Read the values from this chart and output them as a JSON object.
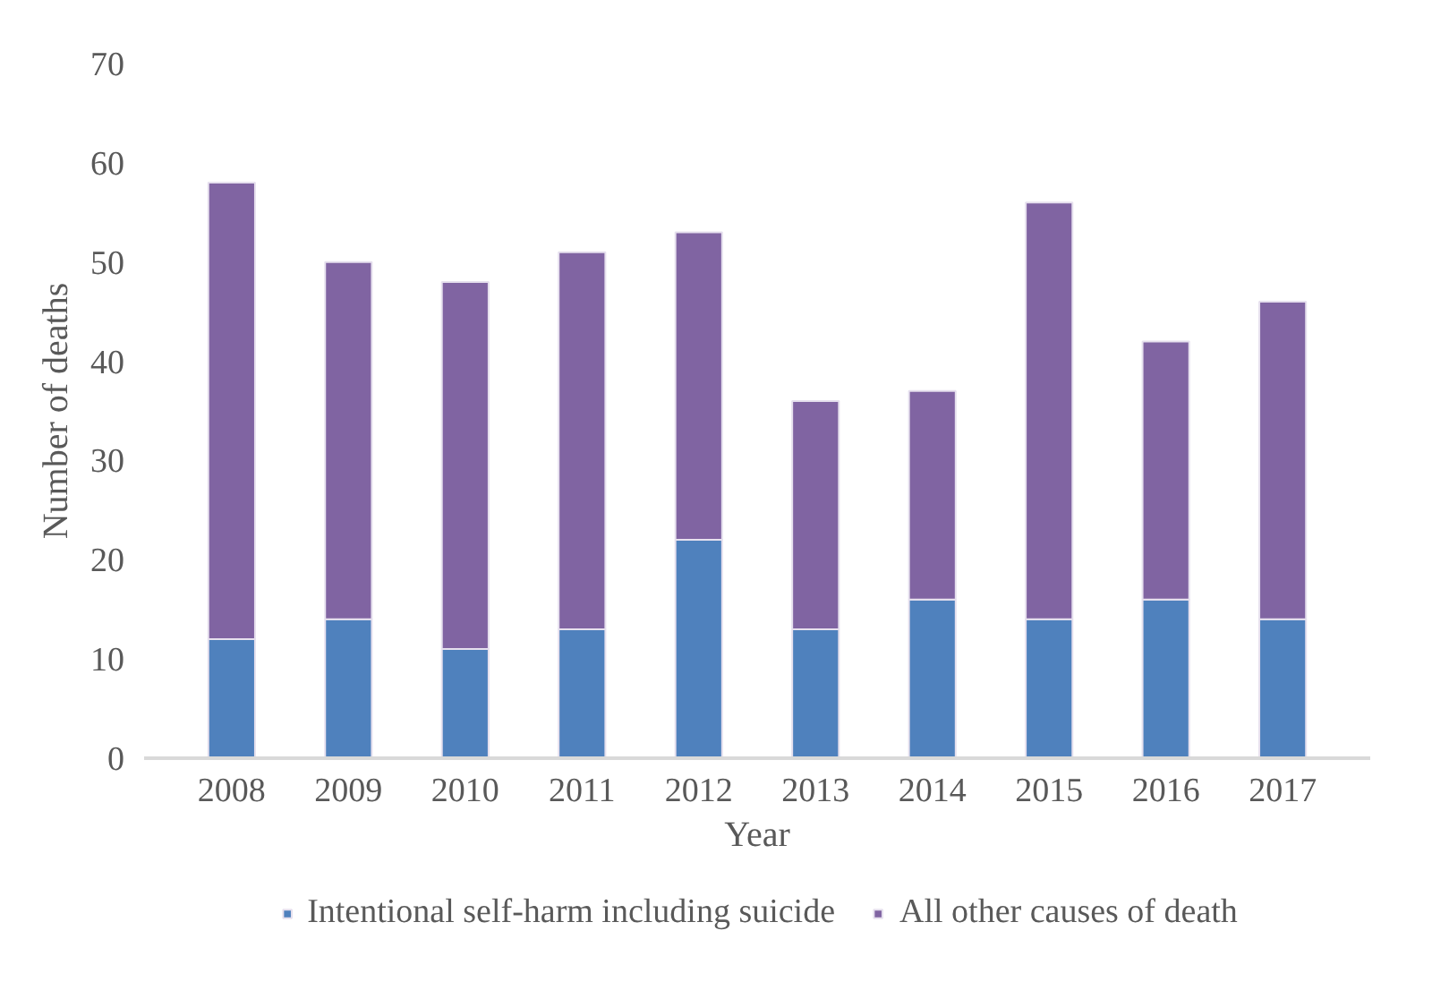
{
  "chart_data": {
    "type": "bar",
    "stacked": true,
    "xlabel": "Year",
    "ylabel": "Number of deaths",
    "categories": [
      "2008",
      "2009",
      "2010",
      "2011",
      "2012",
      "2013",
      "2014",
      "2015",
      "2016",
      "2017"
    ],
    "series": [
      {
        "name": "Intentional self-harm including suicide",
        "color": "#4f81bd",
        "values": [
          12,
          14,
          11,
          13,
          22,
          13,
          16,
          14,
          16,
          14
        ]
      },
      {
        "name": "All other causes of death",
        "color": "#8064a2",
        "values": [
          46,
          36,
          37,
          38,
          31,
          23,
          21,
          42,
          26,
          32
        ]
      }
    ],
    "ylim": [
      0,
      70
    ],
    "yticks": [
      0,
      10,
      20,
      30,
      40,
      50,
      60,
      70
    ],
    "grid": false,
    "legend": "bottom"
  }
}
